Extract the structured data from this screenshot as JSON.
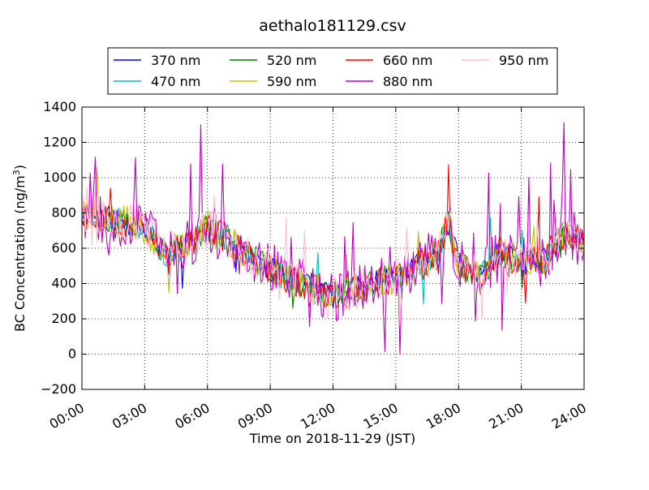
{
  "chart_data": {
    "type": "line",
    "title": "aethalo181129.csv",
    "xlabel": "Time on 2018-11-29 (JST)",
    "ylabel_main": "BC Concentration (ng/m",
    "ylabel_sup": "3",
    "ylabel_tail": ")",
    "xlim": [
      "00:00",
      "24:00"
    ],
    "ylim": [
      -200,
      1400
    ],
    "x_ticks": [
      "00:00",
      "03:00",
      "06:00",
      "09:00",
      "12:00",
      "15:00",
      "18:00",
      "21:00",
      "24:00"
    ],
    "y_ticks": [
      "−200",
      "0",
      "200",
      "400",
      "600",
      "800",
      "1000",
      "1200",
      "1400"
    ],
    "grid": true,
    "legend_position": "top-center",
    "baseline_profile": {
      "x_hours": [
        0,
        1,
        2,
        3,
        4,
        5,
        6,
        7,
        8,
        9,
        10,
        11,
        12,
        13,
        14,
        15,
        16,
        17,
        17.5,
        18,
        19,
        20,
        21,
        22,
        23,
        24
      ],
      "y": [
        800,
        780,
        750,
        720,
        560,
        620,
        720,
        640,
        560,
        480,
        420,
        380,
        330,
        360,
        420,
        430,
        500,
        560,
        750,
        520,
        430,
        580,
        520,
        520,
        680,
        650
      ]
    },
    "series": [
      {
        "name": "370 nm",
        "color": "#0000ff",
        "seed": 11,
        "noise": 70,
        "spike": 0.02
      },
      {
        "name": "470 nm",
        "color": "#00bfbf",
        "seed": 23,
        "noise": 75,
        "spike": 0.02
      },
      {
        "name": "520 nm",
        "color": "#008000",
        "seed": 37,
        "noise": 80,
        "spike": 0.03
      },
      {
        "name": "590 nm",
        "color": "#bfbf00",
        "seed": 41,
        "noise": 95,
        "spike": 0.05
      },
      {
        "name": "660 nm",
        "color": "#ff0000",
        "seed": 53,
        "noise": 90,
        "spike": 0.04
      },
      {
        "name": "880 nm",
        "color": "#bf00bf",
        "seed": 67,
        "noise": 150,
        "spike": 0.1
      },
      {
        "name": "950 nm",
        "color": "#ffc0cb",
        "seed": 79,
        "noise": 110,
        "spike": 0.05
      }
    ]
  }
}
